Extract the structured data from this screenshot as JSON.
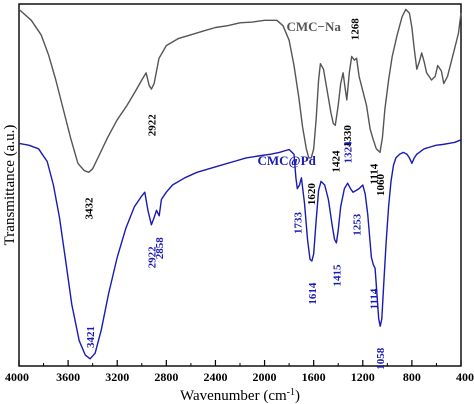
{
  "chart_data": {
    "type": "line",
    "xlabel": "Wavenumber (cm",
    "xlabel_sup": "-1",
    "xlabel_end": ")",
    "ylabel": "Transmittance (a.u.)",
    "xlim": [
      4000,
      400
    ],
    "x_reversed": true,
    "ylim": [
      0,
      1
    ],
    "y_ticks_shown": false,
    "x_ticks": [
      4000,
      3600,
      3200,
      2800,
      2400,
      2000,
      1600,
      1200,
      800,
      400
    ],
    "x_tick_labels": [
      "4000",
      "3600",
      "3200",
      "2800",
      "2400",
      "2000",
      "1600",
      "1200",
      "800",
      "400"
    ],
    "legend": "inline-labels",
    "series": [
      {
        "name": "CMC−Na",
        "color": "#555555",
        "label_x": 1600,
        "label_y": 0.925,
        "points": [
          [
            4000,
            0.985
          ],
          [
            3900,
            0.955
          ],
          [
            3820,
            0.915
          ],
          [
            3760,
            0.86
          ],
          [
            3700,
            0.79
          ],
          [
            3640,
            0.71
          ],
          [
            3580,
            0.63
          ],
          [
            3520,
            0.56
          ],
          [
            3470,
            0.54
          ],
          [
            3432,
            0.535
          ],
          [
            3400,
            0.545
          ],
          [
            3350,
            0.58
          ],
          [
            3280,
            0.63
          ],
          [
            3200,
            0.68
          ],
          [
            3120,
            0.72
          ],
          [
            3050,
            0.76
          ],
          [
            3000,
            0.79
          ],
          [
            2965,
            0.81
          ],
          [
            2940,
            0.775
          ],
          [
            2922,
            0.765
          ],
          [
            2900,
            0.78
          ],
          [
            2860,
            0.85
          ],
          [
            2800,
            0.885
          ],
          [
            2700,
            0.905
          ],
          [
            2600,
            0.915
          ],
          [
            2500,
            0.925
          ],
          [
            2400,
            0.935
          ],
          [
            2300,
            0.94
          ],
          [
            2200,
            0.948
          ],
          [
            2100,
            0.95
          ],
          [
            2000,
            0.955
          ],
          [
            1900,
            0.955
          ],
          [
            1850,
            0.94
          ],
          [
            1800,
            0.9
          ],
          [
            1760,
            0.83
          ],
          [
            1720,
            0.74
          ],
          [
            1690,
            0.66
          ],
          [
            1660,
            0.6
          ],
          [
            1640,
            0.575
          ],
          [
            1620,
            0.575
          ],
          [
            1600,
            0.6
          ],
          [
            1580,
            0.68
          ],
          [
            1560,
            0.79
          ],
          [
            1545,
            0.835
          ],
          [
            1520,
            0.82
          ],
          [
            1490,
            0.76
          ],
          [
            1460,
            0.7
          ],
          [
            1440,
            0.67
          ],
          [
            1424,
            0.665
          ],
          [
            1400,
            0.72
          ],
          [
            1380,
            0.78
          ],
          [
            1360,
            0.81
          ],
          [
            1345,
            0.77
          ],
          [
            1330,
            0.735
          ],
          [
            1310,
            0.81
          ],
          [
            1290,
            0.855
          ],
          [
            1268,
            0.845
          ],
          [
            1250,
            0.85
          ],
          [
            1230,
            0.8
          ],
          [
            1200,
            0.76
          ],
          [
            1170,
            0.72
          ],
          [
            1140,
            0.655
          ],
          [
            1114,
            0.625
          ],
          [
            1090,
            0.6
          ],
          [
            1060,
            0.59
          ],
          [
            1040,
            0.63
          ],
          [
            1020,
            0.71
          ],
          [
            990,
            0.79
          ],
          [
            960,
            0.855
          ],
          [
            920,
            0.915
          ],
          [
            880,
            0.965
          ],
          [
            850,
            0.985
          ],
          [
            820,
            0.975
          ],
          [
            800,
            0.935
          ],
          [
            780,
            0.875
          ],
          [
            760,
            0.82
          ],
          [
            740,
            0.84
          ],
          [
            720,
            0.865
          ],
          [
            700,
            0.84
          ],
          [
            680,
            0.81
          ],
          [
            660,
            0.8
          ],
          [
            640,
            0.79
          ],
          [
            610,
            0.8
          ],
          [
            590,
            0.83
          ],
          [
            560,
            0.815
          ],
          [
            540,
            0.78
          ],
          [
            510,
            0.8
          ],
          [
            480,
            0.84
          ],
          [
            450,
            0.88
          ],
          [
            420,
            0.92
          ],
          [
            400,
            0.975
          ]
        ]
      },
      {
        "name": "CMC@Pd",
        "color": "#1a1ab4",
        "label_x": 1820,
        "label_y": 0.555,
        "points": [
          [
            4000,
            0.615
          ],
          [
            3920,
            0.61
          ],
          [
            3840,
            0.6
          ],
          [
            3770,
            0.565
          ],
          [
            3720,
            0.5
          ],
          [
            3670,
            0.41
          ],
          [
            3620,
            0.29
          ],
          [
            3570,
            0.17
          ],
          [
            3510,
            0.07
          ],
          [
            3460,
            0.03
          ],
          [
            3421,
            0.02
          ],
          [
            3380,
            0.035
          ],
          [
            3330,
            0.1
          ],
          [
            3270,
            0.2
          ],
          [
            3200,
            0.3
          ],
          [
            3130,
            0.38
          ],
          [
            3060,
            0.44
          ],
          [
            3000,
            0.47
          ],
          [
            2975,
            0.48
          ],
          [
            2950,
            0.43
          ],
          [
            2922,
            0.39
          ],
          [
            2900,
            0.41
          ],
          [
            2880,
            0.43
          ],
          [
            2858,
            0.415
          ],
          [
            2840,
            0.46
          ],
          [
            2800,
            0.48
          ],
          [
            2750,
            0.5
          ],
          [
            2650,
            0.52
          ],
          [
            2550,
            0.535
          ],
          [
            2450,
            0.545
          ],
          [
            2350,
            0.555
          ],
          [
            2250,
            0.565
          ],
          [
            2150,
            0.575
          ],
          [
            2050,
            0.58
          ],
          [
            1950,
            0.585
          ],
          [
            1880,
            0.59
          ],
          [
            1800,
            0.598
          ],
          [
            1760,
            0.585
          ],
          [
            1745,
            0.52
          ],
          [
            1733,
            0.49
          ],
          [
            1715,
            0.5
          ],
          [
            1700,
            0.52
          ],
          [
            1675,
            0.45
          ],
          [
            1650,
            0.35
          ],
          [
            1630,
            0.295
          ],
          [
            1614,
            0.29
          ],
          [
            1600,
            0.31
          ],
          [
            1580,
            0.4
          ],
          [
            1560,
            0.485
          ],
          [
            1540,
            0.51
          ],
          [
            1510,
            0.5
          ],
          [
            1480,
            0.46
          ],
          [
            1450,
            0.39
          ],
          [
            1430,
            0.35
          ],
          [
            1415,
            0.34
          ],
          [
            1400,
            0.375
          ],
          [
            1380,
            0.44
          ],
          [
            1350,
            0.49
          ],
          [
            1324,
            0.505
          ],
          [
            1300,
            0.49
          ],
          [
            1280,
            0.48
          ],
          [
            1253,
            0.485
          ],
          [
            1230,
            0.49
          ],
          [
            1200,
            0.5
          ],
          [
            1180,
            0.475
          ],
          [
            1160,
            0.42
          ],
          [
            1130,
            0.3
          ],
          [
            1114,
            0.28
          ],
          [
            1100,
            0.27
          ],
          [
            1085,
            0.2
          ],
          [
            1070,
            0.13
          ],
          [
            1058,
            0.11
          ],
          [
            1045,
            0.13
          ],
          [
            1030,
            0.22
          ],
          [
            1010,
            0.34
          ],
          [
            990,
            0.44
          ],
          [
            970,
            0.51
          ],
          [
            950,
            0.555
          ],
          [
            930,
            0.575
          ],
          [
            900,
            0.585
          ],
          [
            870,
            0.59
          ],
          [
            840,
            0.585
          ],
          [
            820,
            0.575
          ],
          [
            800,
            0.56
          ],
          [
            780,
            0.575
          ],
          [
            760,
            0.585
          ],
          [
            740,
            0.59
          ],
          [
            720,
            0.595
          ],
          [
            700,
            0.6
          ],
          [
            650,
            0.605
          ],
          [
            600,
            0.61
          ],
          [
            550,
            0.612
          ],
          [
            500,
            0.615
          ],
          [
            450,
            0.618
          ],
          [
            400,
            0.625
          ]
        ]
      }
    ],
    "annotations": [
      {
        "text": "2922",
        "series": 0,
        "x": 2922,
        "y": 0.665,
        "color": "#000000"
      },
      {
        "text": "3432",
        "series": 0,
        "x": 3432,
        "y": 0.435,
        "color": "#000000"
      },
      {
        "text": "1620",
        "series": 0,
        "x": 1620,
        "y": 0.475,
        "color": "#000000"
      },
      {
        "text": "1424",
        "series": 0,
        "x": 1424,
        "y": 0.565,
        "color": "#000000"
      },
      {
        "text": "1330",
        "series": 0,
        "x": 1330,
        "y": 0.635,
        "color": "#000000"
      },
      {
        "text": "1268",
        "series": 0,
        "x": 1268,
        "y": 0.93,
        "color": "#000000"
      },
      {
        "text": "1114",
        "series": 0,
        "x": 1114,
        "y": 0.53,
        "color": "#000000"
      },
      {
        "text": "1060",
        "series": 0,
        "x": 1060,
        "y": 0.5,
        "color": "#000000"
      },
      {
        "text": "3421",
        "series": 1,
        "x": 3421,
        "y": 0.08,
        "color": "#1a1ab4"
      },
      {
        "text": "2922",
        "series": 1,
        "x": 2922,
        "y": 0.3,
        "color": "#1a1ab4"
      },
      {
        "text": "2858",
        "series": 1,
        "x": 2858,
        "y": 0.325,
        "color": "#1a1ab4"
      },
      {
        "text": "1733",
        "series": 1,
        "x": 1733,
        "y": 0.395,
        "color": "#1a1ab4"
      },
      {
        "text": "1614",
        "series": 1,
        "x": 1614,
        "y": 0.2,
        "color": "#1a1ab4"
      },
      {
        "text": "1415",
        "series": 1,
        "x": 1415,
        "y": 0.25,
        "color": "#1a1ab4"
      },
      {
        "text": "1324",
        "series": 1,
        "x": 1324,
        "y": 0.59,
        "color": "#1a1ab4"
      },
      {
        "text": "1253",
        "series": 1,
        "x": 1253,
        "y": 0.39,
        "color": "#1a1ab4"
      },
      {
        "text": "1114",
        "series": 1,
        "x": 1114,
        "y": 0.185,
        "color": "#1a1ab4"
      },
      {
        "text": "1058",
        "series": 1,
        "x": 1058,
        "y": 0.02,
        "color": "#1a1ab4"
      }
    ]
  }
}
